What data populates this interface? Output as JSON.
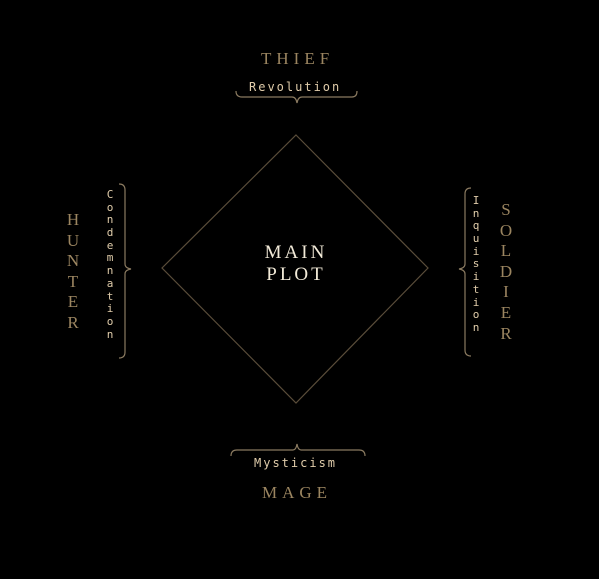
{
  "diagram": {
    "center": {
      "line1": "MAIN",
      "line2": "PLOT"
    },
    "top": {
      "role": "THIEF",
      "theme": "Revolution"
    },
    "bottom": {
      "role": "MAGE",
      "theme": "Mysticism"
    },
    "left": {
      "role": "HUNTER",
      "theme": "Condemnation"
    },
    "right": {
      "role": "SOLDIER",
      "theme": "Inquisition"
    }
  },
  "colors": {
    "background": "#000000",
    "role_text": "#9b8560",
    "theme_text": "#e0ccaa",
    "center_text": "#f2ead8",
    "diamond_stroke": "#5a4d3a",
    "brace_stroke": "#8a7a60"
  }
}
